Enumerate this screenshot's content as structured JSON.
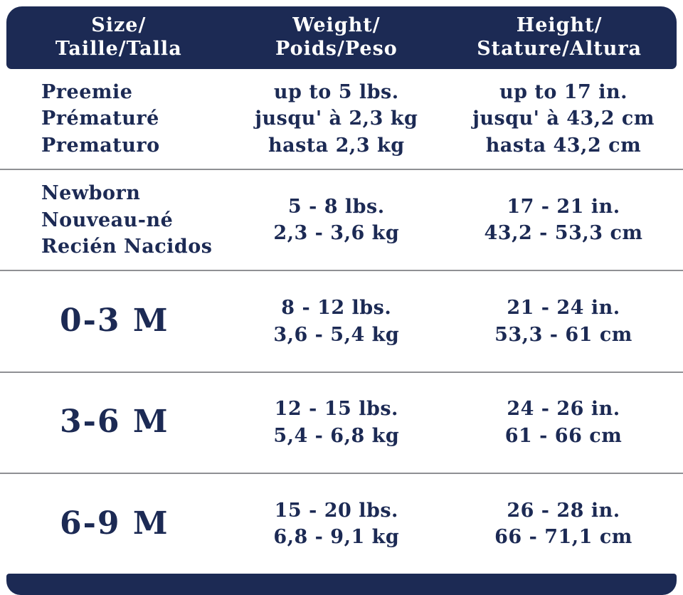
{
  "colors": {
    "navy": "#1c2a54",
    "header_text": "#ffffff",
    "body_text": "#1c2a54",
    "divider": "#8f9094",
    "background": "#ffffff"
  },
  "chart_data": {
    "type": "table",
    "title": "Baby clothing size chart (Size / Weight / Height in English, French, Spanish)",
    "legend_position": "none",
    "header": {
      "size": [
        "Size/",
        "Taille/Talla"
      ],
      "weight": [
        "Weight/",
        "Poids/Peso"
      ],
      "height": [
        "Height/",
        "Stature/Altura"
      ]
    },
    "rows": [
      {
        "size": [
          "Preemie",
          "Prématuré",
          "Prematuro"
        ],
        "weight": [
          "up to 5 lbs.",
          "jusqu' à 2,3 kg",
          "hasta 2,3 kg"
        ],
        "height": [
          "up to 17 in.",
          "jusqu' à 43,2 cm",
          "hasta 43,2 cm"
        ]
      },
      {
        "size": [
          "Newborn",
          "Nouveau-né",
          "Recién Nacidos"
        ],
        "weight": [
          "5 - 8 lbs.",
          "2,3 - 3,6 kg"
        ],
        "height": [
          "17 - 21 in.",
          "43,2 - 53,3 cm"
        ]
      },
      {
        "size": [
          "0-3 M"
        ],
        "weight": [
          "8 - 12 lbs.",
          "3,6 - 5,4 kg"
        ],
        "height": [
          "21 - 24 in.",
          "53,3 - 61 cm"
        ]
      },
      {
        "size": [
          "3-6 M"
        ],
        "weight": [
          "12 - 15 lbs.",
          "5,4 - 6,8 kg"
        ],
        "height": [
          "24 - 26 in.",
          "61 - 66 cm"
        ]
      },
      {
        "size": [
          "6-9 M"
        ],
        "weight": [
          "15 - 20 lbs.",
          "6,8 - 9,1 kg"
        ],
        "height": [
          "26 - 28 in.",
          "66 - 71,1 cm"
        ]
      }
    ]
  }
}
